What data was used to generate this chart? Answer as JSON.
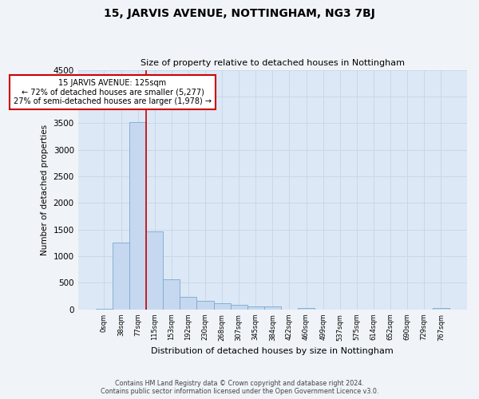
{
  "title": "15, JARVIS AVENUE, NOTTINGHAM, NG3 7BJ",
  "subtitle": "Size of property relative to detached houses in Nottingham",
  "xlabel": "Distribution of detached houses by size in Nottingham",
  "ylabel": "Number of detached properties",
  "bar_labels": [
    "0sqm",
    "38sqm",
    "77sqm",
    "115sqm",
    "153sqm",
    "192sqm",
    "230sqm",
    "268sqm",
    "307sqm",
    "345sqm",
    "384sqm",
    "422sqm",
    "460sqm",
    "499sqm",
    "537sqm",
    "575sqm",
    "614sqm",
    "652sqm",
    "690sqm",
    "729sqm",
    "767sqm"
  ],
  "bar_values": [
    5,
    1260,
    3520,
    1460,
    570,
    240,
    160,
    115,
    80,
    60,
    50,
    0,
    30,
    0,
    0,
    0,
    0,
    0,
    0,
    0,
    20
  ],
  "bar_color": "#c5d8f0",
  "bar_edge_color": "#7aaad0",
  "background_color": "#dce8f5",
  "fig_background": "#f0f4f8",
  "ylim": [
    0,
    4500
  ],
  "yticks": [
    0,
    500,
    1000,
    1500,
    2000,
    2500,
    3000,
    3500,
    4000,
    4500
  ],
  "vline_x": 2.5,
  "property_line_label": "15 JARVIS AVENUE: 125sqm",
  "annotation_smaller": "← 72% of detached houses are smaller (5,277)",
  "annotation_larger": "27% of semi-detached houses are larger (1,978) →",
  "annotation_box_color": "#ffffff",
  "annotation_box_edge": "#cc0000",
  "vline_color": "#cc0000",
  "footer_line1": "Contains HM Land Registry data © Crown copyright and database right 2024.",
  "footer_line2": "Contains public sector information licensed under the Open Government Licence v3.0.",
  "grid_color": "#c8d8e8"
}
